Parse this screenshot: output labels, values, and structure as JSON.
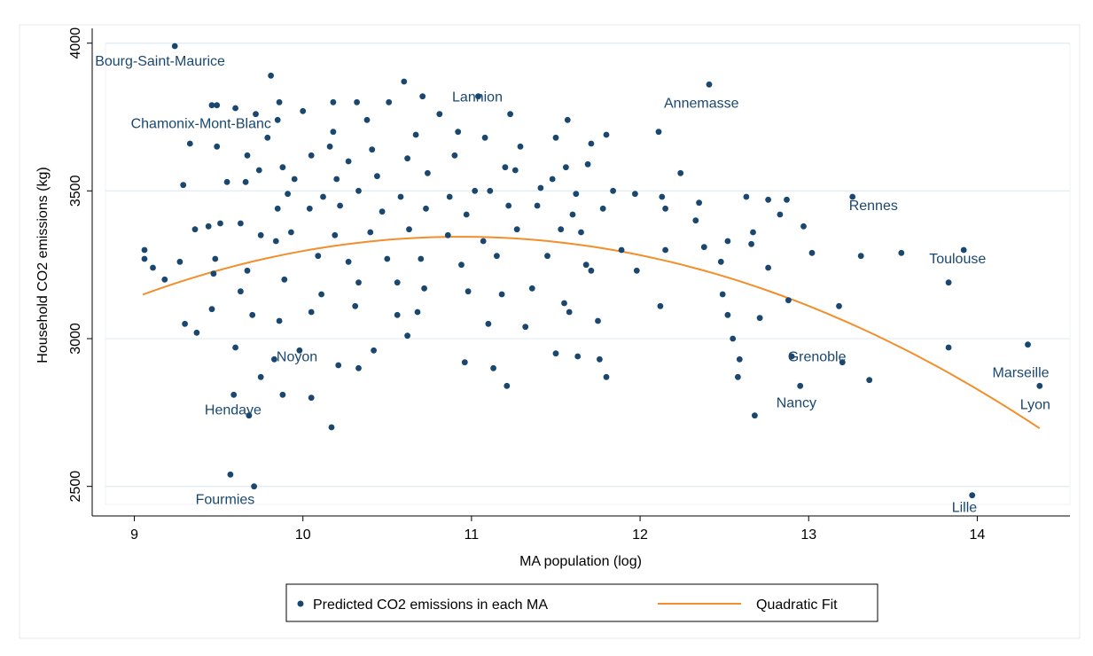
{
  "chart_data": {
    "type": "scatter",
    "xlabel": "MA population (log)",
    "ylabel": "Household CO2 emissions (kg)",
    "xlim": [
      8.75,
      14.55
    ],
    "ylim": [
      2400,
      4050
    ],
    "xticks": [
      9,
      10,
      11,
      12,
      13,
      14
    ],
    "yticks": [
      2500,
      3000,
      3500,
      4000
    ],
    "grid": true,
    "legend_position": "bottom",
    "colors": {
      "points": "#1a476f",
      "fit": "#f28e2b",
      "grid": "#e3eef4",
      "labels": "#1a476f"
    },
    "series": [
      {
        "name": "Predicted CO2 emissions in each MA",
        "kind": "scatter",
        "points": [
          [
            9.24,
            3990
          ],
          [
            9.81,
            3890
          ],
          [
            10.6,
            3870
          ],
          [
            10.71,
            3820
          ],
          [
            11.04,
            3820
          ],
          [
            12.41,
            3860
          ],
          [
            9.46,
            3790
          ],
          [
            9.49,
            3790
          ],
          [
            9.72,
            3760
          ],
          [
            9.86,
            3800
          ],
          [
            10.0,
            3770
          ],
          [
            10.18,
            3800
          ],
          [
            10.32,
            3800
          ],
          [
            10.51,
            3800
          ],
          [
            10.81,
            3760
          ],
          [
            11.23,
            3760
          ],
          [
            11.57,
            3740
          ],
          [
            12.11,
            3700
          ],
          [
            9.6,
            3780
          ],
          [
            9.85,
            3740
          ],
          [
            10.18,
            3700
          ],
          [
            10.38,
            3740
          ],
          [
            10.92,
            3700
          ],
          [
            11.29,
            3650
          ],
          [
            11.8,
            3690
          ],
          [
            11.71,
            3660
          ],
          [
            9.33,
            3660
          ],
          [
            9.49,
            3650
          ],
          [
            9.79,
            3680
          ],
          [
            10.16,
            3650
          ],
          [
            10.41,
            3640
          ],
          [
            10.67,
            3690
          ],
          [
            11.08,
            3680
          ],
          [
            11.5,
            3680
          ],
          [
            9.67,
            3620
          ],
          [
            9.88,
            3580
          ],
          [
            10.05,
            3620
          ],
          [
            10.27,
            3600
          ],
          [
            10.62,
            3610
          ],
          [
            10.9,
            3620
          ],
          [
            11.2,
            3580
          ],
          [
            11.56,
            3580
          ],
          [
            11.69,
            3590
          ],
          [
            12.24,
            3560
          ],
          [
            9.55,
            3530
          ],
          [
            9.74,
            3570
          ],
          [
            9.95,
            3540
          ],
          [
            10.2,
            3540
          ],
          [
            10.44,
            3550
          ],
          [
            10.74,
            3560
          ],
          [
            11.02,
            3500
          ],
          [
            11.26,
            3570
          ],
          [
            11.48,
            3540
          ],
          [
            9.29,
            3520
          ],
          [
            9.66,
            3530
          ],
          [
            9.91,
            3490
          ],
          [
            10.12,
            3480
          ],
          [
            10.33,
            3500
          ],
          [
            10.58,
            3480
          ],
          [
            10.87,
            3480
          ],
          [
            11.11,
            3500
          ],
          [
            11.41,
            3510
          ],
          [
            11.62,
            3490
          ],
          [
            11.84,
            3500
          ],
          [
            11.97,
            3490
          ],
          [
            12.13,
            3480
          ],
          [
            12.63,
            3480
          ],
          [
            12.76,
            3470
          ],
          [
            12.87,
            3470
          ],
          [
            13.26,
            3480
          ],
          [
            9.44,
            3380
          ],
          [
            9.63,
            3390
          ],
          [
            9.85,
            3440
          ],
          [
            10.04,
            3440
          ],
          [
            10.22,
            3450
          ],
          [
            10.47,
            3430
          ],
          [
            10.73,
            3440
          ],
          [
            10.97,
            3420
          ],
          [
            11.22,
            3450
          ],
          [
            11.39,
            3450
          ],
          [
            11.6,
            3420
          ],
          [
            11.78,
            3440
          ],
          [
            12.15,
            3440
          ],
          [
            12.35,
            3460
          ],
          [
            12.83,
            3420
          ],
          [
            12.97,
            3380
          ],
          [
            9.36,
            3370
          ],
          [
            9.51,
            3390
          ],
          [
            9.75,
            3350
          ],
          [
            9.93,
            3360
          ],
          [
            10.19,
            3350
          ],
          [
            10.4,
            3360
          ],
          [
            10.63,
            3370
          ],
          [
            10.86,
            3350
          ],
          [
            11.07,
            3330
          ],
          [
            11.27,
            3370
          ],
          [
            11.53,
            3370
          ],
          [
            11.65,
            3360
          ],
          [
            12.33,
            3400
          ],
          [
            12.52,
            3330
          ],
          [
            12.67,
            3360
          ],
          [
            9.06,
            3300
          ],
          [
            9.11,
            3240
          ],
          [
            9.27,
            3260
          ],
          [
            9.48,
            3270
          ],
          [
            9.67,
            3230
          ],
          [
            9.84,
            3330
          ],
          [
            10.09,
            3280
          ],
          [
            10.27,
            3260
          ],
          [
            10.5,
            3270
          ],
          [
            10.7,
            3270
          ],
          [
            10.94,
            3250
          ],
          [
            11.15,
            3280
          ],
          [
            11.45,
            3280
          ],
          [
            11.68,
            3250
          ],
          [
            11.89,
            3300
          ],
          [
            12.15,
            3300
          ],
          [
            12.38,
            3310
          ],
          [
            12.48,
            3260
          ],
          [
            12.66,
            3320
          ],
          [
            13.02,
            3290
          ],
          [
            13.31,
            3280
          ],
          [
            13.55,
            3290
          ],
          [
            13.92,
            3300
          ],
          [
            9.06,
            3270
          ],
          [
            9.18,
            3200
          ],
          [
            9.47,
            3220
          ],
          [
            9.63,
            3160
          ],
          [
            9.89,
            3200
          ],
          [
            10.11,
            3150
          ],
          [
            10.33,
            3190
          ],
          [
            10.56,
            3190
          ],
          [
            10.72,
            3170
          ],
          [
            10.98,
            3160
          ],
          [
            11.18,
            3150
          ],
          [
            11.36,
            3170
          ],
          [
            11.55,
            3120
          ],
          [
            11.71,
            3230
          ],
          [
            11.98,
            3230
          ],
          [
            12.12,
            3110
          ],
          [
            12.49,
            3150
          ],
          [
            12.76,
            3240
          ],
          [
            12.88,
            3130
          ],
          [
            13.18,
            3110
          ],
          [
            13.83,
            3190
          ],
          [
            9.3,
            3050
          ],
          [
            9.46,
            3100
          ],
          [
            9.7,
            3080
          ],
          [
            9.86,
            3060
          ],
          [
            10.05,
            3090
          ],
          [
            10.31,
            3110
          ],
          [
            10.56,
            3080
          ],
          [
            10.68,
            3090
          ],
          [
            11.1,
            3050
          ],
          [
            11.32,
            3040
          ],
          [
            11.58,
            3090
          ],
          [
            11.75,
            3060
          ],
          [
            12.52,
            3080
          ],
          [
            12.71,
            3070
          ],
          [
            9.37,
            3020
          ],
          [
            9.6,
            2970
          ],
          [
            9.83,
            2930
          ],
          [
            9.98,
            2960
          ],
          [
            10.21,
            2910
          ],
          [
            10.42,
            2960
          ],
          [
            10.62,
            3010
          ],
          [
            10.96,
            2920
          ],
          [
            11.13,
            2900
          ],
          [
            11.5,
            2950
          ],
          [
            11.63,
            2940
          ],
          [
            11.76,
            2930
          ],
          [
            12.55,
            3000
          ],
          [
            12.59,
            2930
          ],
          [
            12.9,
            2940
          ],
          [
            13.2,
            2920
          ],
          [
            13.83,
            2970
          ],
          [
            14.3,
            2980
          ],
          [
            9.59,
            2810
          ],
          [
            9.75,
            2870
          ],
          [
            9.88,
            2810
          ],
          [
            10.05,
            2800
          ],
          [
            10.33,
            2900
          ],
          [
            11.21,
            2840
          ],
          [
            11.8,
            2870
          ],
          [
            12.58,
            2870
          ],
          [
            12.95,
            2840
          ],
          [
            13.36,
            2860
          ],
          [
            14.37,
            2840
          ],
          [
            9.68,
            2740
          ],
          [
            10.17,
            2700
          ],
          [
            12.68,
            2740
          ],
          [
            9.57,
            2540
          ],
          [
            9.71,
            2500
          ],
          [
            13.97,
            2470
          ]
        ]
      },
      {
        "name": "Quadratic Fit",
        "kind": "line",
        "equation": "y = -3233.38 + 1203.0*x - 55.0*x^2",
        "coeffs": [
          -3233.38,
          1203.0,
          -55.0
        ],
        "x_range": [
          9.05,
          14.37
        ]
      }
    ],
    "annotations": [
      {
        "text": "Bourg-Saint-Maurice",
        "x": 9.24,
        "y": 3990
      },
      {
        "text": "Chamonix-Mont-Blanc",
        "x": 9.81,
        "y": 3890
      },
      {
        "text": "Lannion",
        "x": 11.04,
        "y": 3820
      },
      {
        "text": "Annemasse",
        "x": 12.41,
        "y": 3860
      },
      {
        "text": "Rennes",
        "x": 13.26,
        "y": 3480
      },
      {
        "text": "Toulouse",
        "x": 13.92,
        "y": 3300
      },
      {
        "text": "Noyon",
        "x": 9.98,
        "y": 2960
      },
      {
        "text": "Marseille",
        "x": 14.3,
        "y": 2980
      },
      {
        "text": "Grenoble",
        "x": 13.36,
        "y": 2860
      },
      {
        "text": "Hendaye",
        "x": 9.68,
        "y": 2740
      },
      {
        "text": "Nancy",
        "x": 12.95,
        "y": 2840
      },
      {
        "text": "Lyon",
        "x": 14.37,
        "y": 2840
      },
      {
        "text": "Fourmies",
        "x": 9.71,
        "y": 2500
      },
      {
        "text": "Lille",
        "x": 13.97,
        "y": 2470
      }
    ]
  }
}
